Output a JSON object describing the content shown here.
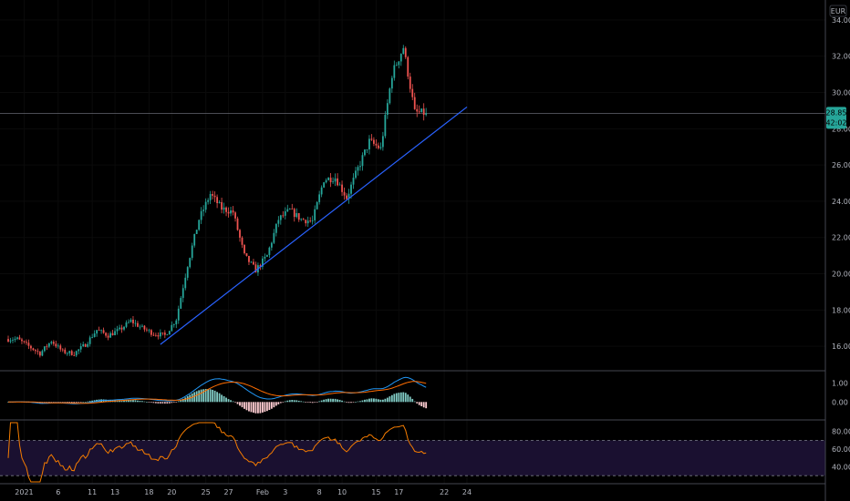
{
  "currency": "EUR",
  "last_price_label": "28.85",
  "countdown_label": "42:02",
  "colors": {
    "up": "#26a69a",
    "down": "#ef5350",
    "trendline": "#2962ff",
    "macd": "#2196f3",
    "signal": "#ff6d00",
    "rsi": "#f57c00",
    "rsi_band": "#1a1030",
    "badge": "#26a69a"
  },
  "chart_data": [
    {
      "type": "candlestick",
      "title": "",
      "y_ticks": [
        "16.00",
        "18.00",
        "20.00",
        "22.00",
        "24.00",
        "26.00",
        "28.00",
        "30.00",
        "32.00",
        "34.00"
      ],
      "ylim": [
        14.8,
        34.9
      ],
      "last_price": 28.85,
      "trendline": {
        "start": {
          "day": "Jan 19",
          "value": 16.1
        },
        "end": {
          "day": "Feb 24",
          "value": 29.2
        }
      },
      "daily_close": [
        {
          "day": "Dec 30",
          "close": 16.4
        },
        {
          "day": "Dec 31",
          "close": 16.0
        },
        {
          "day": "Jan 4",
          "close": 15.6
        },
        {
          "day": "Jan 5",
          "close": 16.3
        },
        {
          "day": "Jan 6",
          "close": 15.7
        },
        {
          "day": "Jan 7",
          "close": 15.6
        },
        {
          "day": "Jan 8",
          "close": 16.1
        },
        {
          "day": "Jan 11",
          "close": 16.9
        },
        {
          "day": "Jan 12",
          "close": 16.6
        },
        {
          "day": "Jan 13",
          "close": 16.9
        },
        {
          "day": "Jan 14",
          "close": 17.4
        },
        {
          "day": "Jan 15",
          "close": 17.0
        },
        {
          "day": "Jan 18",
          "close": 16.7
        },
        {
          "day": "Jan 19",
          "close": 16.6
        },
        {
          "day": "Jan 20",
          "close": 17.5
        },
        {
          "day": "Jan 21",
          "close": 20.5
        },
        {
          "day": "Jan 22",
          "close": 23.0
        },
        {
          "day": "Jan 25",
          "close": 24.4
        },
        {
          "day": "Jan 26",
          "close": 23.6
        },
        {
          "day": "Jan 27",
          "close": 23.4
        },
        {
          "day": "Jan 28",
          "close": 21.0
        },
        {
          "day": "Jan 29",
          "close": 20.2
        },
        {
          "day": "Feb 1",
          "close": 21.0
        },
        {
          "day": "Feb 2",
          "close": 23.0
        },
        {
          "day": "Feb 3",
          "close": 23.5
        },
        {
          "day": "Feb 4",
          "close": 23.0
        },
        {
          "day": "Feb 5",
          "close": 22.9
        },
        {
          "day": "Feb 8",
          "close": 25.2
        },
        {
          "day": "Feb 9",
          "close": 25.3
        },
        {
          "day": "Feb 10",
          "close": 24.2
        },
        {
          "day": "Feb 11",
          "close": 25.8
        },
        {
          "day": "Feb 12",
          "close": 27.3
        },
        {
          "day": "Feb 15",
          "close": 26.9
        },
        {
          "day": "Feb 16",
          "close": 31.0
        },
        {
          "day": "Feb 17",
          "close": 32.5
        },
        {
          "day": "Feb 18",
          "close": 28.9
        },
        {
          "day": "Feb 19",
          "close": 28.85
        }
      ],
      "x_ticks": [
        "2021",
        "6",
        "11",
        "13",
        "18",
        "20",
        "25",
        "27",
        "Feb",
        "3",
        "8",
        "10",
        "15",
        "17",
        "22",
        "24"
      ]
    },
    {
      "type": "line",
      "indicator": "MACD",
      "y_ticks": [
        "1.00",
        "0.00"
      ],
      "ylim": [
        -0.8,
        1.5
      ]
    },
    {
      "type": "line",
      "indicator": "RSI",
      "y_ticks": [
        "80.00",
        "60.00",
        "40.00"
      ],
      "ylim": [
        23,
        90
      ],
      "bands": [
        30,
        70
      ]
    }
  ]
}
